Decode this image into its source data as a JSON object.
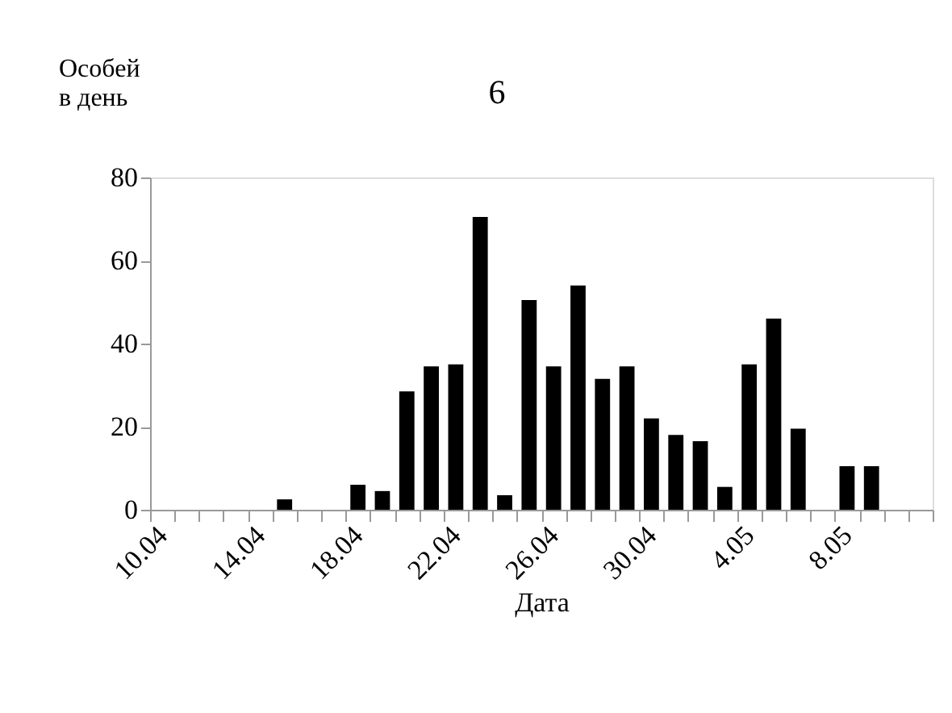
{
  "chart_data": {
    "type": "bar",
    "title": "6",
    "xlabel": "Дата",
    "ylabel": "Особей в день",
    "categories": [
      "10.04",
      null,
      null,
      null,
      "14.04",
      null,
      null,
      null,
      "18.04",
      null,
      null,
      null,
      "22.04",
      null,
      null,
      null,
      "26.04",
      null,
      null,
      null,
      "30.04",
      null,
      null,
      null,
      "4.05",
      null,
      null,
      null,
      "8.05",
      null,
      null,
      null
    ],
    "values": [
      0,
      0,
      0,
      0,
      0,
      2.5,
      0,
      0,
      6,
      4.5,
      28.5,
      34.5,
      35,
      70.5,
      3.5,
      50.5,
      34.5,
      54,
      31.5,
      34.5,
      22,
      18,
      16.5,
      5.5,
      35,
      46,
      19.5,
      0,
      10.5,
      10.5,
      0,
      0
    ],
    "color": "#000000",
    "ylim": [
      0,
      80
    ],
    "yticks": [
      0,
      20,
      40,
      60,
      80
    ],
    "grid": false
  }
}
